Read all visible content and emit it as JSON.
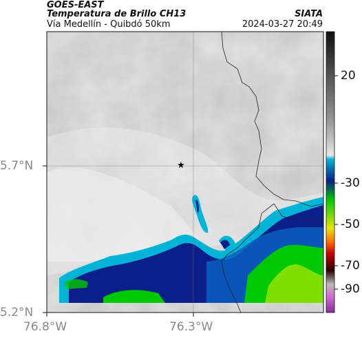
{
  "header": {
    "satellite": "GOES-EAST",
    "product": "Temperatura de Brillo CH13",
    "area": "Vía Medellín - Quibdó 50km",
    "organization": "SIATA",
    "timestamp": "2024-03-27 20:49"
  },
  "map": {
    "lat_ticks": [
      "5.7°N",
      "5.2°N"
    ],
    "lon_ticks": [
      "76.8°W",
      "76.3°W"
    ],
    "marker": "star-icon",
    "background_color": "#c9c9c9"
  },
  "colorbar": {
    "labels": [
      "20",
      "-30",
      "-50",
      "-70",
      "-90"
    ],
    "colors": [
      "#111111",
      "#ffffff",
      "#00b4d8",
      "#0b1f8a",
      "#00c800",
      "#e6e600",
      "#ff6a00",
      "#c80000",
      "#2a0000",
      "#b44ac8"
    ]
  }
}
